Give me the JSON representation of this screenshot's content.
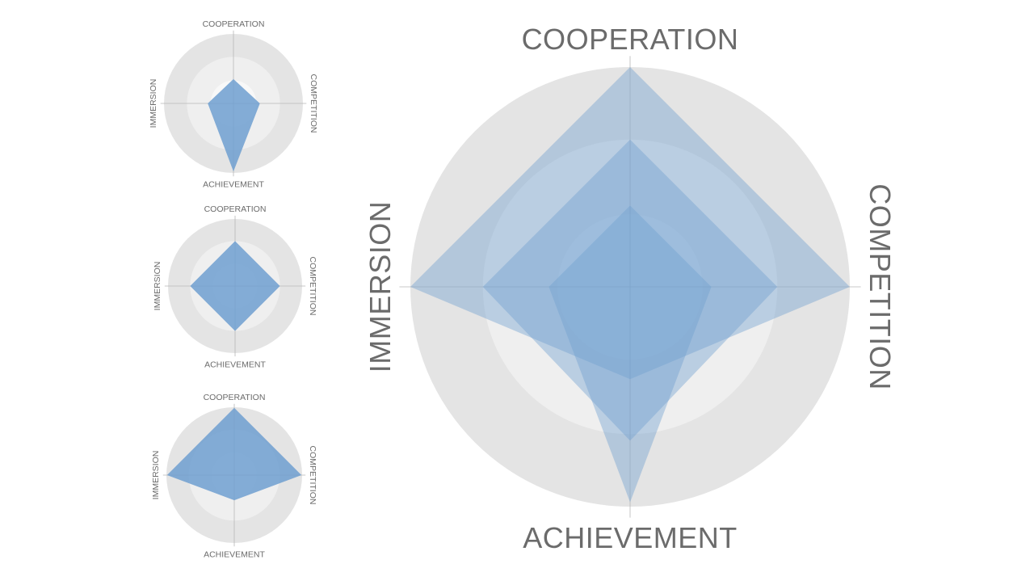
{
  "colors": {
    "ring_outer": "#e4e4e4",
    "ring_mid": "#efefef",
    "ring_inner": "#f8f8f8",
    "axis_line": "#b8b8b8",
    "fill": "#6f9fd0",
    "label": "#6b6b6b"
  },
  "chart_data": [
    {
      "type": "radar",
      "axes": [
        "COOPERATION",
        "COMPETITION",
        "ACHIEVEMENT",
        "IMMERSION"
      ],
      "rmax": 1,
      "rings": [
        1,
        0.67,
        0.33
      ],
      "series": [
        {
          "values": [
            0.35,
            0.38,
            0.98,
            0.37
          ]
        }
      ]
    },
    {
      "type": "radar",
      "axes": [
        "COOPERATION",
        "COMPETITION",
        "ACHIEVEMENT",
        "IMMERSION"
      ],
      "rmax": 1,
      "rings": [
        1,
        0.67,
        0.33
      ],
      "series": [
        {
          "values": [
            0.67,
            0.67,
            0.67,
            0.67
          ]
        }
      ]
    },
    {
      "type": "radar",
      "axes": [
        "COOPERATION",
        "COMPETITION",
        "ACHIEVEMENT",
        "IMMERSION"
      ],
      "rmax": 1,
      "rings": [
        1,
        0.67,
        0.33
      ],
      "series": [
        {
          "values": [
            0.99,
            0.99,
            0.37,
            0.99
          ]
        }
      ]
    },
    {
      "type": "radar",
      "axes": [
        "COOPERATION",
        "COMPETITION",
        "ACHIEVEMENT",
        "IMMERSION"
      ],
      "rmax": 1,
      "rings": [
        1,
        0.67,
        0.33
      ],
      "series": [
        {
          "values": [
            0.37,
            0.37,
            0.98,
            0.37
          ]
        },
        {
          "values": [
            0.67,
            0.67,
            0.7,
            0.67
          ]
        },
        {
          "values": [
            1.0,
            1.0,
            0.42,
            1.0
          ]
        }
      ]
    }
  ]
}
